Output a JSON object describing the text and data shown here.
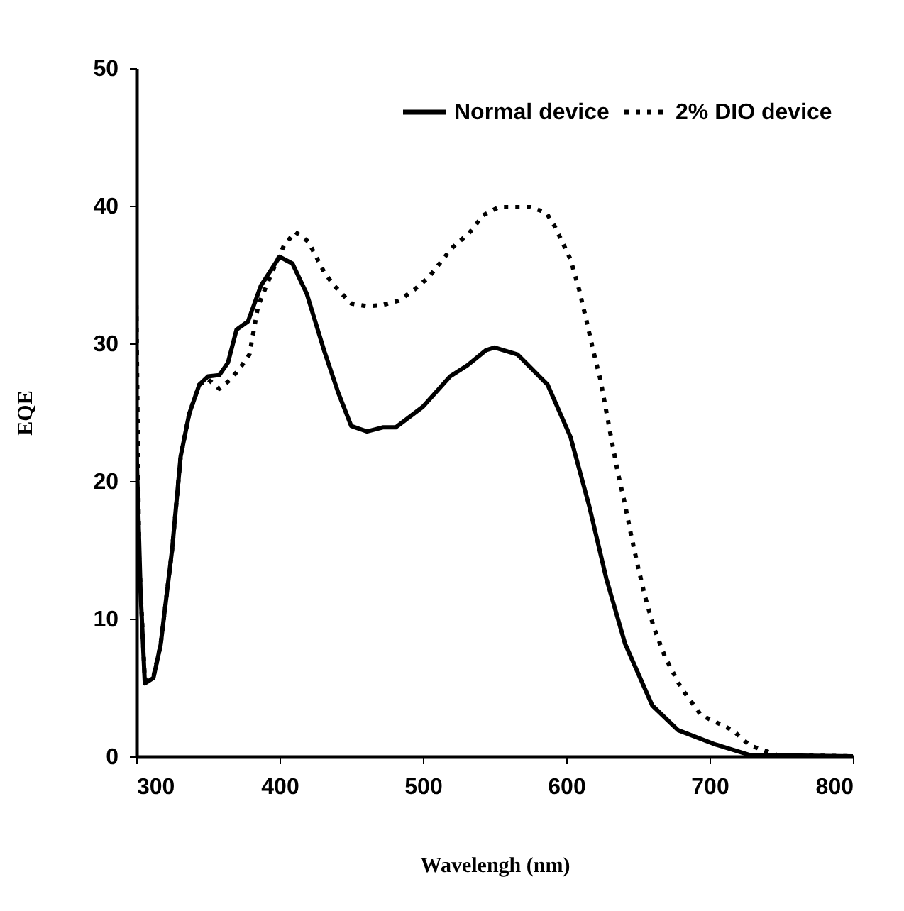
{
  "chart_data": {
    "type": "line",
    "xlabel": "Wavelengh (nm)",
    "ylabel": "EQE",
    "xlim": [
      300,
      800
    ],
    "xticks": [
      300,
      400,
      500,
      600,
      700,
      800
    ],
    "ylim": [
      0,
      50
    ],
    "yticks": [
      0,
      10,
      20,
      30,
      40,
      50
    ],
    "grid": false,
    "legend": "top right",
    "marker": "none",
    "series": [
      {
        "name": "Normal device",
        "color": "#000000",
        "line_style": "solid",
        "x": [
          300,
          303,
          306,
          312,
          317,
          325,
          331,
          337,
          344,
          350,
          358,
          364,
          370,
          378,
          387,
          400,
          409,
          419,
          431,
          441,
          450,
          461,
          472,
          481,
          500,
          519,
          531,
          544,
          550,
          566,
          587,
          603,
          616,
          628,
          641,
          660,
          678,
          703,
          728,
          800
        ],
        "values": [
          23,
          12,
          5.3,
          5.7,
          8.1,
          15,
          21.8,
          24.9,
          27,
          27.6,
          27.7,
          28.6,
          31,
          31.6,
          34.2,
          36.3,
          35.8,
          33.6,
          29.5,
          26.4,
          24,
          23.6,
          23.9,
          23.9,
          25.4,
          27.6,
          28.4,
          29.5,
          29.7,
          29.2,
          27,
          23.2,
          18.2,
          12.9,
          8.2,
          3.7,
          1.9,
          0.9,
          0.1,
          0
        ]
      },
      {
        "name": "2% DIO device",
        "color": "#000000",
        "line_style": "dotted",
        "x": [
          300,
          302,
          306,
          312,
          317,
          325,
          331,
          337,
          344,
          350,
          358,
          366,
          373,
          379,
          385,
          394,
          403,
          411,
          420,
          431,
          438,
          450,
          461,
          472,
          483,
          494,
          504,
          520,
          533,
          542,
          553,
          575,
          586,
          592,
          598,
          603,
          609,
          614,
          619,
          624,
          630,
          636,
          641,
          645,
          650,
          655,
          661,
          669,
          680,
          694,
          716,
          728,
          747,
          800
        ],
        "values": [
          33.6,
          14.5,
          5.5,
          5.8,
          8.1,
          15,
          21.8,
          24.9,
          27,
          27.4,
          26.7,
          27.4,
          28.3,
          29.2,
          32.7,
          35,
          37.1,
          38.1,
          37.4,
          35.2,
          34.2,
          32.9,
          32.7,
          32.8,
          33.1,
          33.9,
          34.8,
          36.9,
          38.1,
          39.3,
          39.9,
          39.9,
          39.5,
          38.5,
          37.2,
          36.1,
          33.9,
          31.7,
          29.4,
          27.3,
          23.9,
          20.6,
          18.3,
          16.2,
          13.8,
          11.6,
          9.4,
          7.2,
          5,
          3,
          1.9,
          0.8,
          0.1,
          0
        ]
      }
    ]
  }
}
